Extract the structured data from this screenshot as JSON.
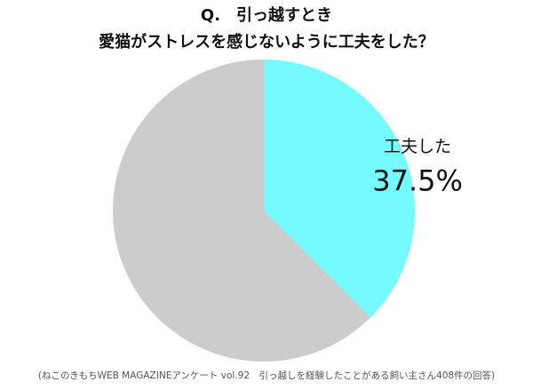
{
  "chart_data": {
    "type": "pie",
    "title": [
      "Q.　引っ越すとき",
      "愛猫がストレスを感じないように工夫をした？"
    ],
    "categories": [
      "工夫した",
      null
    ],
    "values": [
      37.5,
      62.5
    ],
    "value_labels": [
      "37.5%",
      null
    ],
    "colors": [
      "#74fbfd",
      "#cccccc"
    ],
    "source": "(ねこのきもちWEB MAGAZINEアンケート vol.92　引っ越しを経験したことがある飼い主さん408件の回答)"
  }
}
